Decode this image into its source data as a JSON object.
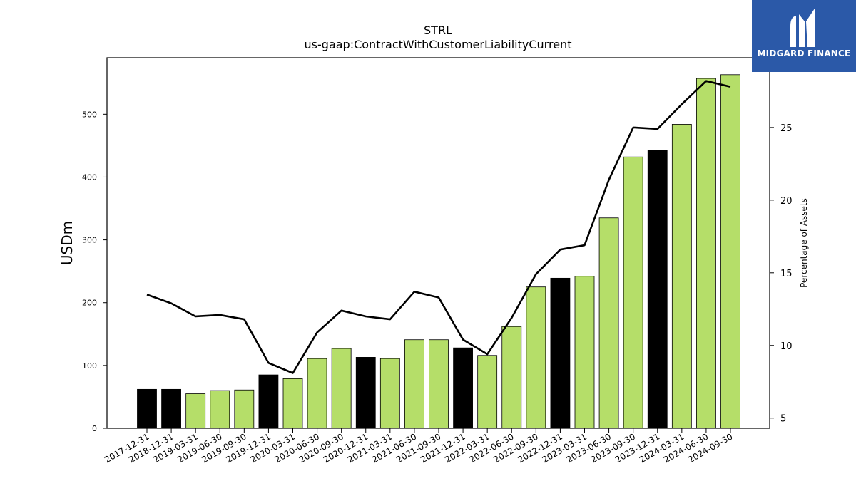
{
  "chart_data": {
    "type": "bar",
    "title": "STRL",
    "subtitle": "us-gaap:ContractWithCustomerLiabilityCurrent",
    "ylabel": "USDm",
    "y2label": "Percentage of Assets",
    "ylim": [
      0,
      590
    ],
    "y2lim": [
      4.3,
      29.8
    ],
    "yticks": [
      0,
      100,
      200,
      300,
      400,
      500
    ],
    "y2ticks": [
      5,
      10,
      15,
      20,
      25
    ],
    "categories": [
      "2017-12-31",
      "2018-12-31",
      "2019-03-31",
      "2019-06-30",
      "2019-09-30",
      "2019-12-31",
      "2020-03-31",
      "2020-06-30",
      "2020-09-30",
      "2020-12-31",
      "2021-03-31",
      "2021-06-30",
      "2021-09-30",
      "2021-12-31",
      "2022-03-31",
      "2022-06-30",
      "2022-09-30",
      "2022-12-31",
      "2023-03-31",
      "2023-06-30",
      "2023-09-30",
      "2023-12-31",
      "2024-03-31",
      "2024-06-30",
      "2024-09-30"
    ],
    "series": [
      {
        "type": "bar",
        "values": [
          62,
          62,
          55,
          60,
          61,
          85,
          79,
          111,
          127,
          113,
          111,
          141,
          141,
          128,
          116,
          162,
          225,
          239,
          242,
          335,
          432,
          443,
          484,
          557,
          563
        ],
        "colors": [
          "#000000",
          "#000000",
          "#b5de69",
          "#b5de69",
          "#b5de69",
          "#000000",
          "#b5de69",
          "#b5de69",
          "#b5de69",
          "#000000",
          "#b5de69",
          "#b5de69",
          "#b5de69",
          "#000000",
          "#b5de69",
          "#b5de69",
          "#b5de69",
          "#000000",
          "#b5de69",
          "#b5de69",
          "#b5de69",
          "#000000",
          "#b5de69",
          "#b5de69",
          "#b5de69"
        ]
      },
      {
        "type": "line",
        "axis": "right",
        "color": "#000000",
        "values": [
          13.5,
          12.9,
          12.0,
          12.1,
          11.8,
          8.8,
          8.1,
          10.9,
          12.4,
          12.0,
          11.8,
          13.7,
          13.3,
          10.4,
          9.4,
          11.9,
          14.9,
          16.6,
          16.9,
          21.4,
          25.0,
          24.9,
          26.6,
          28.2,
          27.8
        ]
      }
    ]
  },
  "logo": {
    "text": "MIDGARD FINANCE"
  }
}
